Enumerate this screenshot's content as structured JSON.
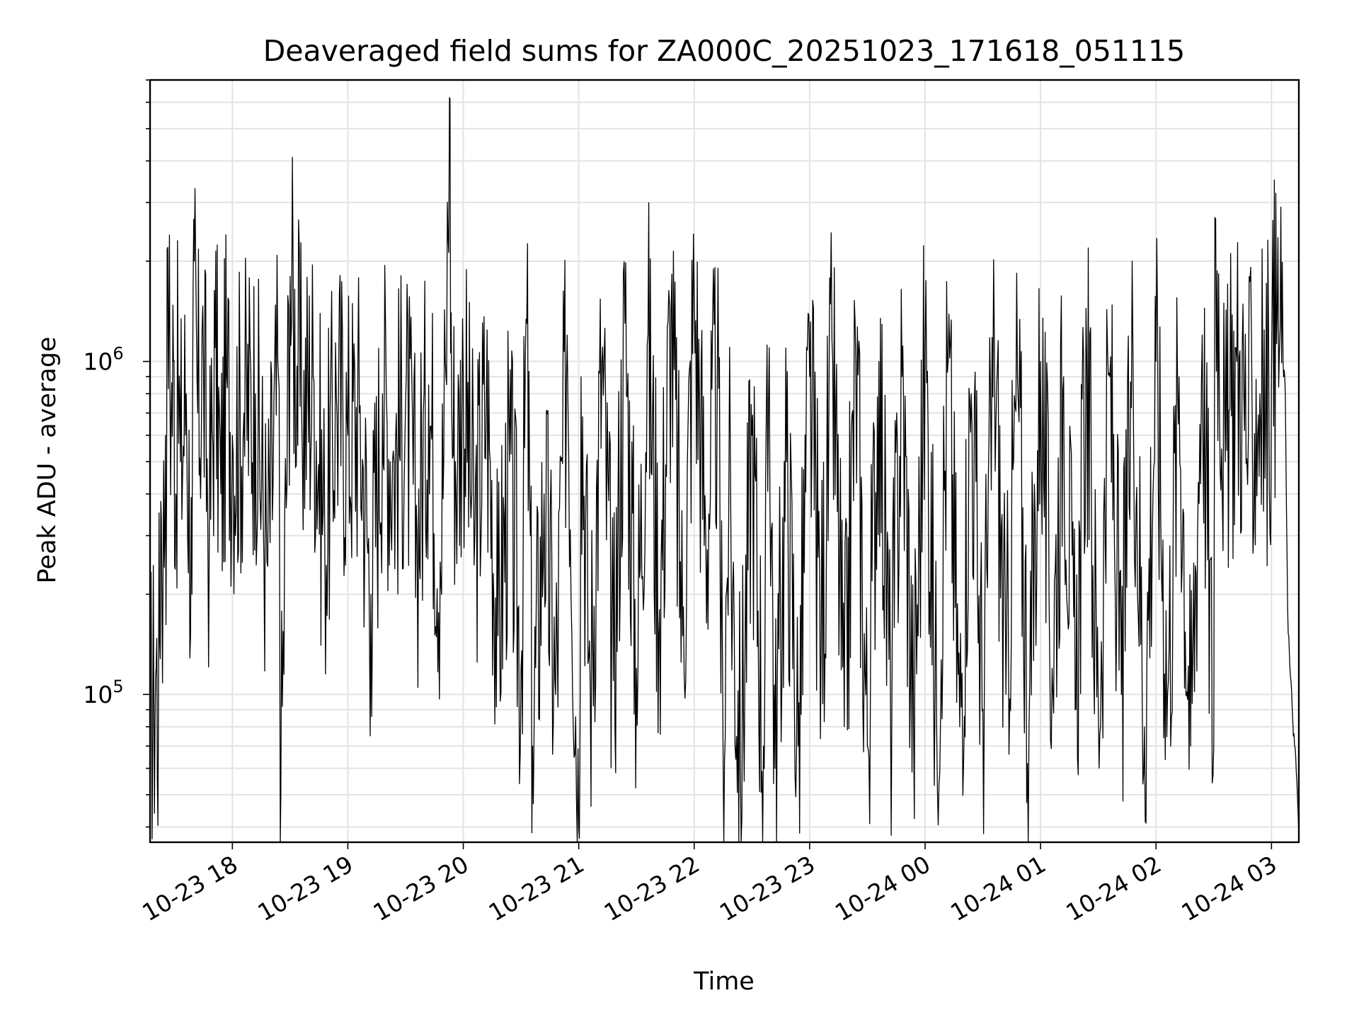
{
  "chart_data": {
    "type": "line",
    "title": "Deaveraged field sums for ZA000C_20251023_171618_051115",
    "xlabel": "Time",
    "ylabel": "Peak ADU - average",
    "yscale": "log",
    "ylim": [
      36000,
      7000000
    ],
    "xlim": [
      -0.713,
      9.237
    ],
    "grid": true,
    "legend": "none",
    "line_color": "#000000",
    "x_ticks": [
      {
        "value": 0,
        "label": "10-23 18"
      },
      {
        "value": 1,
        "label": "10-23 19"
      },
      {
        "value": 2,
        "label": "10-23 20"
      },
      {
        "value": 3,
        "label": "10-23 21"
      },
      {
        "value": 4,
        "label": "10-23 22"
      },
      {
        "value": 5,
        "label": "10-23 23"
      },
      {
        "value": 6,
        "label": "10-24 00"
      },
      {
        "value": 7,
        "label": "10-24 01"
      },
      {
        "value": 8,
        "label": "10-24 02"
      },
      {
        "value": 9,
        "label": "10-24 03"
      }
    ],
    "y_ticks": [
      {
        "value": 100000,
        "base": "10",
        "exp": "5"
      },
      {
        "value": 1000000,
        "base": "10",
        "exp": "6"
      }
    ],
    "x_unit": "hours after 10-23 18:00",
    "series": [
      {
        "name": "Deaveraged field sum",
        "x": [
          -0.713,
          -0.7,
          -0.68,
          -0.66,
          -0.64,
          -0.62,
          -0.6,
          -0.58,
          -0.57,
          -0.56,
          -0.55,
          -0.53,
          -0.51,
          -0.49,
          -0.47,
          -0.45,
          -0.4,
          -0.35,
          -0.33,
          -0.3,
          -0.25,
          -0.2,
          -0.15,
          -0.1,
          -0.05,
          0.0,
          0.1,
          0.2,
          0.3,
          0.4,
          0.42,
          0.5,
          0.6,
          0.7,
          0.8,
          0.9,
          1.0,
          1.1,
          1.2,
          1.3,
          1.4,
          1.5,
          1.6,
          1.7,
          1.8,
          1.85,
          1.88,
          1.9,
          1.95,
          2.0,
          2.1,
          2.2,
          2.3,
          2.4,
          2.5,
          2.55,
          2.6,
          2.7,
          2.8,
          2.9,
          3.0,
          3.02,
          3.1,
          3.2,
          3.3,
          3.4,
          3.5,
          3.6,
          3.7,
          3.8,
          3.9,
          4.0,
          4.1,
          4.2,
          4.25,
          4.3,
          4.4,
          4.5,
          4.6,
          4.65,
          4.7,
          4.8,
          4.9,
          5.0,
          5.1,
          5.2,
          5.3,
          5.4,
          5.5,
          5.6,
          5.7,
          5.8,
          5.9,
          6.0,
          6.1,
          6.2,
          6.3,
          6.4,
          6.5,
          6.6,
          6.7,
          6.8,
          6.9,
          7.0,
          7.1,
          7.2,
          7.3,
          7.4,
          7.5,
          7.6,
          7.7,
          7.8,
          7.9,
          8.0,
          8.1,
          8.2,
          8.3,
          8.4,
          8.5,
          8.51,
          8.6,
          8.7,
          8.8,
          8.9,
          8.95,
          9.0,
          9.05,
          9.1,
          9.12,
          9.14,
          9.16,
          9.18,
          9.2,
          9.22,
          9.237
        ],
        "values": [
          70000,
          100000,
          95000,
          120000,
          90000,
          380000,
          240000,
          600000,
          380000,
          2200000,
          1300000,
          700000,
          1000000,
          400000,
          900000,
          500000,
          800000,
          200000,
          2000000,
          700000,
          1000000,
          300000,
          1100000,
          400000,
          900000,
          600000,
          700000,
          800000,
          250000,
          900000,
          50000,
          1800000,
          700000,
          900000,
          300000,
          800000,
          600000,
          700000,
          200000,
          800000,
          500000,
          750000,
          300000,
          850000,
          250000,
          900000,
          6200000,
          700000,
          500000,
          900000,
          300000,
          800000,
          150000,
          500000,
          120000,
          1300000,
          70000,
          400000,
          100000,
          1200000,
          40000,
          900000,
          100000,
          1000000,
          110000,
          1300000,
          120000,
          1200000,
          180000,
          1400000,
          150000,
          1600000,
          300000,
          900000,
          70000,
          400000,
          60000,
          600000,
          70000,
          1100000,
          60000,
          500000,
          70000,
          900000,
          150000,
          1000000,
          80000,
          1000000,
          70000,
          1000000,
          90000,
          900000,
          80000,
          1100000,
          80000,
          1000000,
          80000,
          800000,
          90000,
          1100000,
          100000,
          900000,
          80000,
          1000000,
          120000,
          900000,
          90000,
          1000000,
          90000,
          900000,
          100000,
          1100000,
          80000,
          1000000,
          100000,
          900000,
          70000,
          1200000,
          70000,
          2700000,
          500000,
          1000000,
          600000,
          800000,
          700000,
          900000,
          1400000,
          1000000,
          800000,
          180000,
          120000,
          90000,
          70000,
          55000,
          38000
        ]
      }
    ]
  }
}
